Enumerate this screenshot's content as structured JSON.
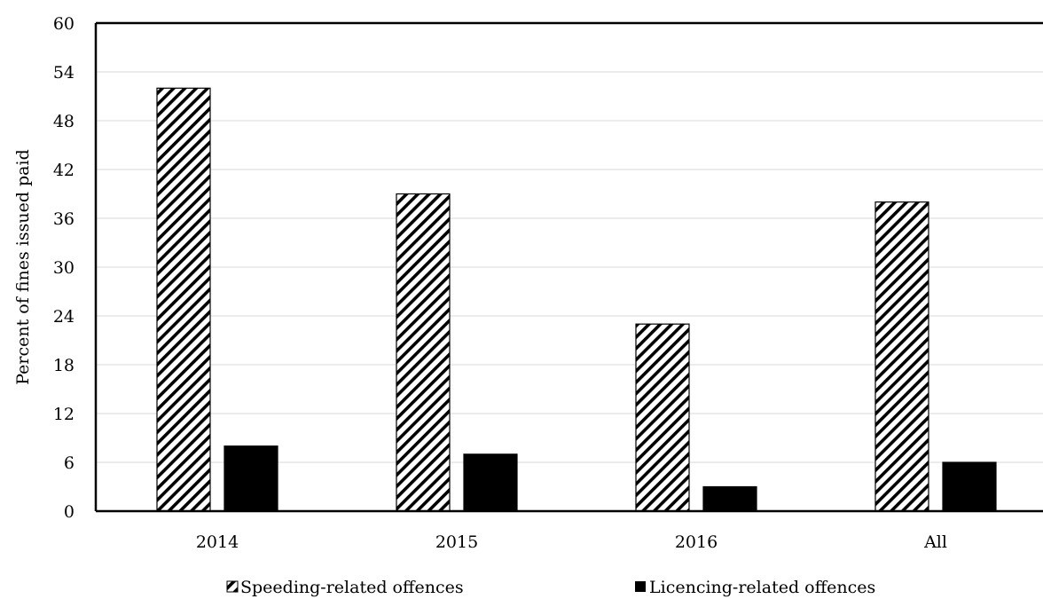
{
  "chart_data": {
    "type": "bar",
    "categories": [
      "2014",
      "2015",
      "2016",
      "All"
    ],
    "series": [
      {
        "name": "Speeding-related offences",
        "values": [
          52,
          39,
          23,
          38
        ],
        "pattern": "diagonal-hatch",
        "color": "#000000"
      },
      {
        "name": "Licencing-related offences",
        "values": [
          8,
          7,
          3,
          6
        ],
        "pattern": "solid",
        "color": "#000000"
      }
    ],
    "ylabel": "Percent of fines issued paid",
    "xlabel": "",
    "ylim": [
      0,
      60
    ],
    "yticks": [
      0,
      6,
      12,
      18,
      24,
      30,
      36,
      42,
      48,
      54,
      60
    ],
    "grid": true,
    "legend_position": "bottom"
  }
}
